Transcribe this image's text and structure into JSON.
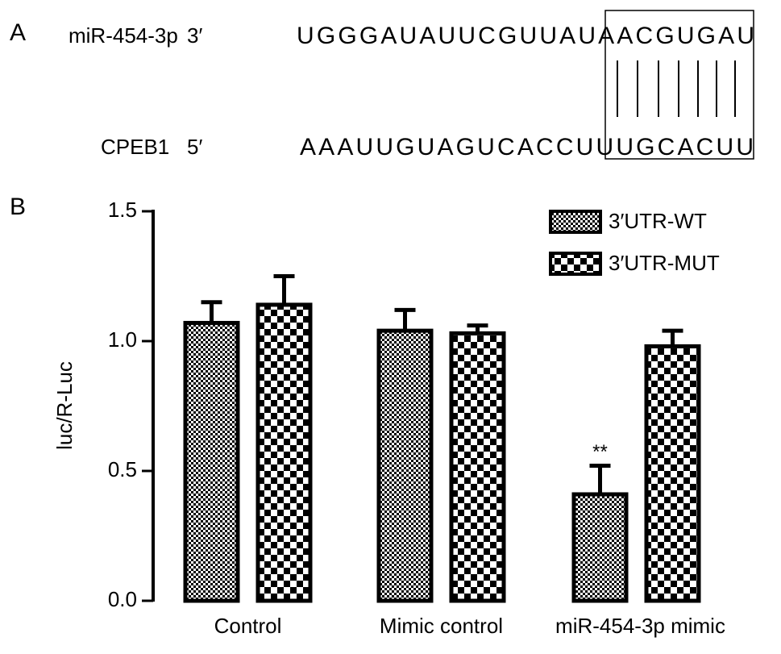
{
  "panel_a": {
    "label": "A",
    "mirna_name": "miR-454-3p",
    "mirna_end": "3′",
    "mirna_seq": "UGGGAUAUUCGUUAUAACGUGAU",
    "target_name": "CPEB1",
    "target_end": "5′",
    "target_seq": "AAAUUGUAGUCACCUUUGCACUU"
  },
  "chart_data": {
    "type": "bar",
    "panel_label": "B",
    "ylabel": "luc/R-Luc",
    "categories": [
      "Control",
      "Mimic control",
      "miR-454-3p mimic"
    ],
    "series": [
      {
        "name": "3′UTR-WT",
        "color": "#000000",
        "values": [
          1.07,
          1.04,
          0.41
        ],
        "errors": [
          0.08,
          0.08,
          0.11
        ]
      },
      {
        "name": "3′UTR-MUT",
        "color": "#000000",
        "values": [
          1.14,
          1.03,
          0.98
        ],
        "errors": [
          0.11,
          0.03,
          0.06
        ]
      }
    ],
    "annotations": [
      {
        "text": "**",
        "series": 0,
        "category": 2
      }
    ],
    "ylim": [
      0,
      1.5
    ],
    "yticks": [
      {
        "value": 0,
        "label": "0.0"
      },
      0.5,
      {
        "value": 1,
        "label": "1.0"
      },
      1.5
    ],
    "legend": "top-right"
  }
}
